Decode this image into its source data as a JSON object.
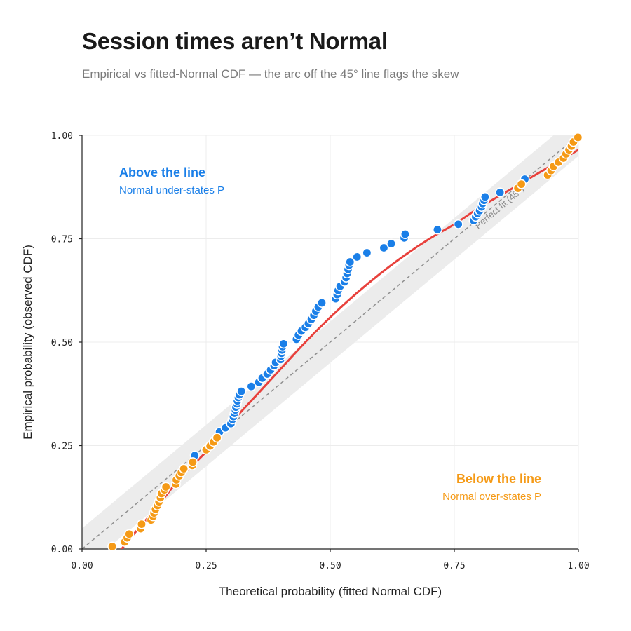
{
  "title": "Session times aren’t Normal",
  "subtitle": "Empirical vs fitted-Normal CDF — the arc off the 45° line flags the skew",
  "colors": {
    "above": "#1a7fe8",
    "below": "#f59a16",
    "fit_curve": "#e8413c",
    "reference": "#8f8f8f",
    "band": "#ececec",
    "grid": "#ececec"
  },
  "chart_data": {
    "type": "scatter",
    "xlabel": "Theoretical probability (fitted Normal CDF)",
    "ylabel": "Empirical probability (observed CDF)",
    "xlim": [
      0,
      1
    ],
    "ylim": [
      0,
      1
    ],
    "xticks": [
      0,
      0.25,
      0.5,
      0.75,
      1
    ],
    "yticks": [
      0,
      0.25,
      0.5,
      0.75,
      1
    ],
    "xtick_labels": [
      "0.00",
      "0.25",
      "0.50",
      "0.75",
      "1.00"
    ],
    "ytick_labels": [
      "0.00",
      "0.25",
      "0.50",
      "0.75",
      "1.00"
    ],
    "grid": true,
    "reference_line": {
      "label": "Perfect fit (45°)",
      "from": [
        0,
        0
      ],
      "to": [
        1,
        1
      ],
      "style": "dashed"
    },
    "confidence_band_halfwidth": 0.05,
    "fit_curve": [
      [
        0.06,
        -0.03
      ],
      [
        0.1,
        0.03
      ],
      [
        0.15,
        0.1
      ],
      [
        0.2,
        0.175
      ],
      [
        0.25,
        0.235
      ],
      [
        0.3,
        0.305
      ],
      [
        0.35,
        0.37
      ],
      [
        0.4,
        0.435
      ],
      [
        0.45,
        0.5
      ],
      [
        0.5,
        0.56
      ],
      [
        0.55,
        0.615
      ],
      [
        0.6,
        0.665
      ],
      [
        0.65,
        0.71
      ],
      [
        0.7,
        0.75
      ],
      [
        0.75,
        0.785
      ],
      [
        0.8,
        0.825
      ],
      [
        0.85,
        0.86
      ],
      [
        0.9,
        0.895
      ],
      [
        0.95,
        0.93
      ],
      [
        1.0,
        0.965
      ]
    ],
    "series": [
      {
        "name": "Above the line",
        "points": [
          [
            0.227,
            0.226
          ],
          [
            0.277,
            0.283
          ],
          [
            0.289,
            0.293
          ],
          [
            0.3,
            0.303
          ],
          [
            0.303,
            0.313
          ],
          [
            0.305,
            0.32
          ],
          [
            0.307,
            0.328
          ],
          [
            0.309,
            0.336
          ],
          [
            0.31,
            0.343
          ],
          [
            0.312,
            0.351
          ],
          [
            0.313,
            0.358
          ],
          [
            0.315,
            0.366
          ],
          [
            0.317,
            0.373
          ],
          [
            0.321,
            0.381
          ],
          [
            0.341,
            0.393
          ],
          [
            0.356,
            0.403
          ],
          [
            0.363,
            0.413
          ],
          [
            0.373,
            0.423
          ],
          [
            0.38,
            0.433
          ],
          [
            0.387,
            0.443
          ],
          [
            0.39,
            0.451
          ],
          [
            0.4,
            0.458
          ],
          [
            0.401,
            0.466
          ],
          [
            0.402,
            0.473
          ],
          [
            0.403,
            0.481
          ],
          [
            0.404,
            0.489
          ],
          [
            0.406,
            0.496
          ],
          [
            0.432,
            0.507
          ],
          [
            0.436,
            0.517
          ],
          [
            0.442,
            0.527
          ],
          [
            0.45,
            0.536
          ],
          [
            0.456,
            0.545
          ],
          [
            0.462,
            0.555
          ],
          [
            0.467,
            0.565
          ],
          [
            0.471,
            0.575
          ],
          [
            0.476,
            0.585
          ],
          [
            0.483,
            0.595
          ],
          [
            0.511,
            0.605
          ],
          [
            0.514,
            0.615
          ],
          [
            0.516,
            0.625
          ],
          [
            0.52,
            0.635
          ],
          [
            0.529,
            0.646
          ],
          [
            0.532,
            0.656
          ],
          [
            0.534,
            0.666
          ],
          [
            0.536,
            0.676
          ],
          [
            0.538,
            0.686
          ],
          [
            0.54,
            0.694
          ],
          [
            0.554,
            0.706
          ],
          [
            0.574,
            0.716
          ],
          [
            0.608,
            0.728
          ],
          [
            0.623,
            0.738
          ],
          [
            0.649,
            0.752
          ],
          [
            0.651,
            0.761
          ],
          [
            0.716,
            0.772
          ],
          [
            0.758,
            0.785
          ],
          [
            0.789,
            0.794
          ],
          [
            0.793,
            0.803
          ],
          [
            0.797,
            0.811
          ],
          [
            0.801,
            0.818
          ],
          [
            0.805,
            0.827
          ],
          [
            0.807,
            0.835
          ],
          [
            0.81,
            0.843
          ],
          [
            0.812,
            0.851
          ],
          [
            0.842,
            0.862
          ],
          [
            0.892,
            0.894
          ]
        ]
      },
      {
        "name": "Below the line",
        "points": [
          [
            0.061,
            0.006
          ],
          [
            0.086,
            0.017
          ],
          [
            0.091,
            0.027
          ],
          [
            0.095,
            0.036
          ],
          [
            0.118,
            0.049
          ],
          [
            0.12,
            0.06
          ],
          [
            0.139,
            0.07
          ],
          [
            0.143,
            0.079
          ],
          [
            0.145,
            0.087
          ],
          [
            0.148,
            0.096
          ],
          [
            0.152,
            0.105
          ],
          [
            0.155,
            0.114
          ],
          [
            0.158,
            0.124
          ],
          [
            0.16,
            0.134
          ],
          [
            0.166,
            0.143
          ],
          [
            0.169,
            0.15
          ],
          [
            0.189,
            0.157
          ],
          [
            0.19,
            0.167
          ],
          [
            0.196,
            0.177
          ],
          [
            0.2,
            0.185
          ],
          [
            0.205,
            0.194
          ],
          [
            0.222,
            0.202
          ],
          [
            0.223,
            0.21
          ],
          [
            0.25,
            0.24
          ],
          [
            0.258,
            0.249
          ],
          [
            0.265,
            0.259
          ],
          [
            0.272,
            0.269
          ],
          [
            0.878,
            0.872
          ],
          [
            0.885,
            0.882
          ],
          [
            0.938,
            0.904
          ],
          [
            0.945,
            0.915
          ],
          [
            0.95,
            0.925
          ],
          [
            0.96,
            0.935
          ],
          [
            0.97,
            0.945
          ],
          [
            0.975,
            0.955
          ],
          [
            0.981,
            0.965
          ],
          [
            0.986,
            0.974
          ],
          [
            0.99,
            0.984
          ],
          [
            0.999,
            0.995
          ]
        ]
      }
    ],
    "annotations": {
      "above": {
        "title": "Above the line",
        "subtitle": "Normal under-states P"
      },
      "below": {
        "title": "Below the line",
        "subtitle": "Normal over-states P"
      }
    }
  }
}
